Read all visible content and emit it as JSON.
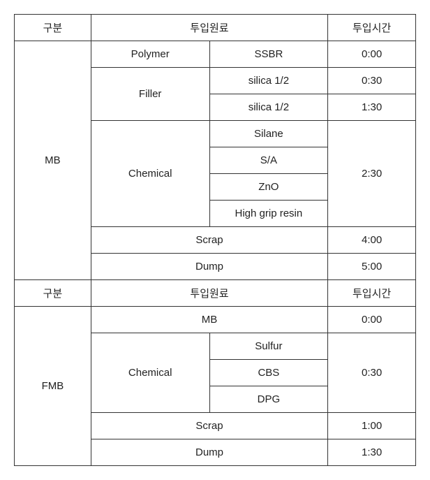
{
  "headers": {
    "category": "구분",
    "material": "투입원료",
    "time": "투입시간"
  },
  "section1": {
    "name": "MB",
    "rows": {
      "polymer": {
        "label": "Polymer",
        "item": "SSBR",
        "time": "0:00"
      },
      "filler": {
        "label": "Filler",
        "items": [
          {
            "name": "silica 1/2",
            "time": "0:30"
          },
          {
            "name": "silica 1/2",
            "time": "1:30"
          }
        ]
      },
      "chemical": {
        "label": "Chemical",
        "items": [
          "Silane",
          "S/A",
          "ZnO",
          "High grip resin"
        ],
        "time": "2:30"
      },
      "scrap": {
        "label": "Scrap",
        "time": "4:00"
      },
      "dump": {
        "label": "Dump",
        "time": "5:00"
      }
    }
  },
  "section2": {
    "name": "FMB",
    "rows": {
      "mb": {
        "label": "MB",
        "time": "0:00"
      },
      "chemical": {
        "label": "Chemical",
        "items": [
          "Sulfur",
          "CBS",
          "DPG"
        ],
        "time": "0:30"
      },
      "scrap": {
        "label": "Scrap",
        "time": "1:00"
      },
      "dump": {
        "label": "Dump",
        "time": "1:30"
      }
    }
  }
}
